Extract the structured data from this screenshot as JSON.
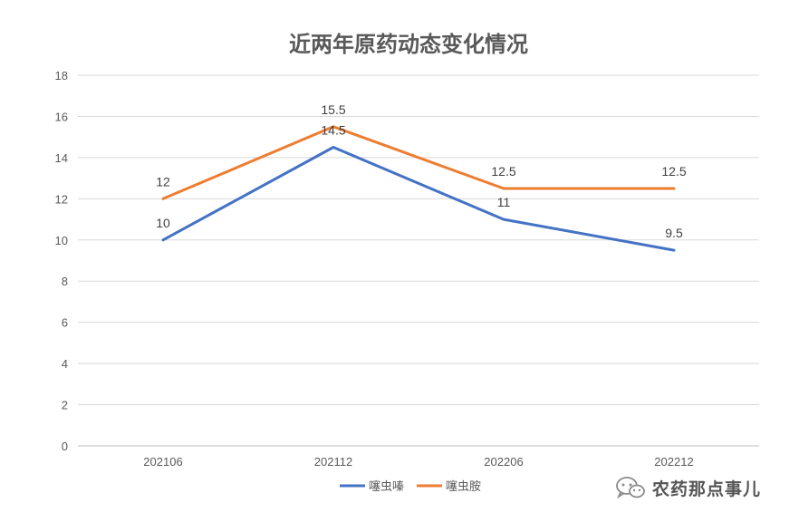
{
  "chart_data": {
    "type": "line",
    "title": "近两年原药动态变化情况",
    "categories": [
      "202106",
      "202112",
      "202206",
      "202212"
    ],
    "ylim": [
      0,
      18
    ],
    "yticks": [
      0,
      2,
      4,
      6,
      8,
      10,
      12,
      14,
      16,
      18
    ],
    "grid": true,
    "legend_position": "bottom",
    "series": [
      {
        "name": "噻虫嗪",
        "color": "#4472C4",
        "values": [
          10,
          14.5,
          11,
          9.5
        ]
      },
      {
        "name": "噻虫胺",
        "color": "#ED7D31",
        "values": [
          12,
          15.5,
          12.5,
          12.5
        ]
      }
    ]
  },
  "watermark": {
    "text": "农药那点事儿",
    "icon": "wechat-icon"
  }
}
